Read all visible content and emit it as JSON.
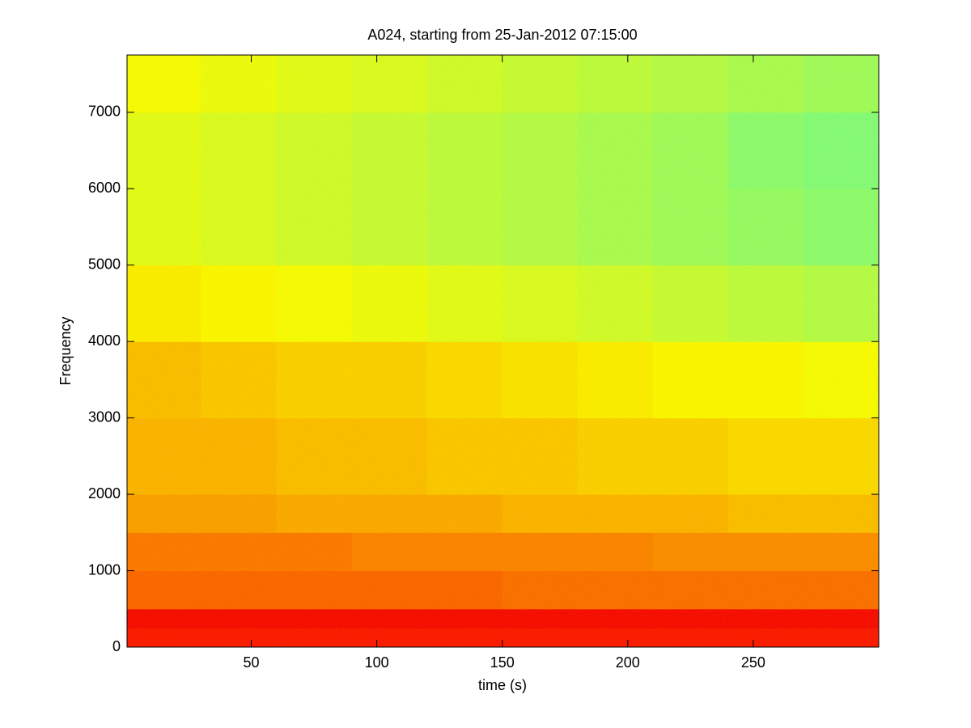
{
  "chart_data": {
    "type": "heatmap",
    "title": "A024, starting from 25-Jan-2012 07:15:00",
    "xlabel": "time (s)",
    "ylabel": "Frequency",
    "colormap": "jet",
    "clim": [
      0,
      1
    ],
    "x_edges": [
      0.5,
      30,
      60,
      90,
      120,
      150,
      180,
      210,
      240,
      270,
      300
    ],
    "y_edges": [
      0,
      250,
      500,
      1000,
      1500,
      2000,
      3000,
      4000,
      5000,
      6000,
      7000,
      7750
    ],
    "z": [
      [
        0.86,
        0.86,
        0.86,
        0.86,
        0.86,
        0.86,
        0.86,
        0.86,
        0.86,
        0.86
      ],
      [
        0.88,
        0.88,
        0.88,
        0.88,
        0.88,
        0.88,
        0.88,
        0.88,
        0.88,
        0.88
      ],
      [
        0.78,
        0.78,
        0.78,
        0.78,
        0.78,
        0.77,
        0.77,
        0.77,
        0.77,
        0.77
      ],
      [
        0.76,
        0.76,
        0.76,
        0.75,
        0.75,
        0.75,
        0.75,
        0.74,
        0.74,
        0.74
      ],
      [
        0.72,
        0.72,
        0.71,
        0.71,
        0.71,
        0.7,
        0.7,
        0.7,
        0.69,
        0.69
      ],
      [
        0.7,
        0.7,
        0.69,
        0.69,
        0.68,
        0.68,
        0.67,
        0.67,
        0.66,
        0.66
      ],
      [
        0.69,
        0.68,
        0.67,
        0.67,
        0.66,
        0.65,
        0.64,
        0.63,
        0.63,
        0.62
      ],
      [
        0.64,
        0.63,
        0.62,
        0.61,
        0.6,
        0.59,
        0.58,
        0.57,
        0.56,
        0.55
      ],
      [
        0.6,
        0.59,
        0.58,
        0.57,
        0.56,
        0.55,
        0.54,
        0.53,
        0.52,
        0.51
      ],
      [
        0.6,
        0.59,
        0.58,
        0.57,
        0.56,
        0.55,
        0.54,
        0.53,
        0.51,
        0.5
      ],
      [
        0.62,
        0.61,
        0.6,
        0.59,
        0.58,
        0.57,
        0.56,
        0.55,
        0.54,
        0.53
      ]
    ],
    "xlim": [
      0.5,
      300
    ],
    "ylim": [
      0,
      7750
    ],
    "xticks": [
      50,
      100,
      150,
      200,
      250
    ],
    "yticks": [
      0,
      1000,
      2000,
      3000,
      4000,
      5000,
      6000,
      7000
    ]
  }
}
